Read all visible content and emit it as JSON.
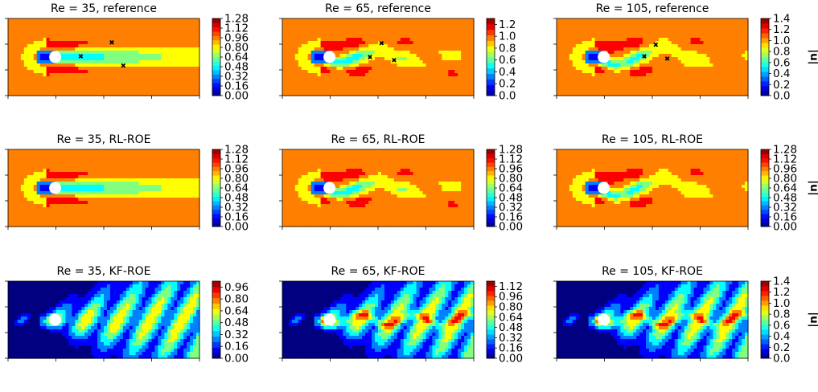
{
  "colorbar_label": "|u|",
  "chart_data": [
    {
      "type": "heatmap",
      "title": "Re = 35, reference",
      "colormap": "jet",
      "style": "reference",
      "re": 35,
      "colorbar": {
        "ticks": [
          "0.00",
          "0.16",
          "0.32",
          "0.48",
          "0.64",
          "0.80",
          "0.96",
          "1.12",
          "1.28"
        ],
        "range": [
          0,
          1.28
        ]
      },
      "show_colorbar_label": false,
      "markers": [
        {
          "x": 0.3,
          "y": 0.51
        },
        {
          "x": 0.57,
          "y": 0.69
        },
        {
          "x": 0.67,
          "y": 0.39
        }
      ]
    },
    {
      "type": "heatmap",
      "title": "Re = 65, reference",
      "colormap": "jet",
      "style": "reference",
      "re": 65,
      "colorbar": {
        "ticks": [
          "0.0",
          "0.2",
          "0.4",
          "0.6",
          "0.8",
          "1.0",
          "1.2"
        ],
        "range": [
          0,
          1.3
        ]
      },
      "show_colorbar_label": false,
      "markers": [
        {
          "x": 0.43,
          "y": 0.5
        },
        {
          "x": 0.53,
          "y": 0.68
        },
        {
          "x": 0.64,
          "y": 0.46
        }
      ]
    },
    {
      "type": "heatmap",
      "title": "Re = 105, reference",
      "colormap": "jet",
      "style": "reference",
      "re": 105,
      "colorbar": {
        "ticks": [
          "0.0",
          "0.2",
          "0.4",
          "0.6",
          "0.8",
          "1.0",
          "1.2",
          "1.4"
        ],
        "range": [
          0,
          1.4
        ]
      },
      "show_colorbar_label": true,
      "markers": [
        {
          "x": 0.43,
          "y": 0.51
        },
        {
          "x": 0.53,
          "y": 0.66
        },
        {
          "x": 0.63,
          "y": 0.48
        }
      ]
    },
    {
      "type": "heatmap",
      "title": "Re = 35, RL-ROE",
      "colormap": "jet",
      "style": "rl",
      "re": 35,
      "colorbar": {
        "ticks": [
          "0.00",
          "0.16",
          "0.32",
          "0.48",
          "0.64",
          "0.80",
          "0.96",
          "1.12",
          "1.28"
        ],
        "range": [
          0,
          1.28
        ]
      },
      "show_colorbar_label": false,
      "markers": []
    },
    {
      "type": "heatmap",
      "title": "Re = 65, RL-ROE",
      "colormap": "jet",
      "style": "rl",
      "re": 65,
      "colorbar": {
        "ticks": [
          "0.00",
          "0.16",
          "0.32",
          "0.48",
          "0.64",
          "0.80",
          "0.96",
          "1.12",
          "1.28"
        ],
        "range": [
          0,
          1.28
        ]
      },
      "show_colorbar_label": false,
      "markers": []
    },
    {
      "type": "heatmap",
      "title": "Re = 105, RL-ROE",
      "colormap": "jet",
      "style": "rl",
      "re": 105,
      "colorbar": {
        "ticks": [
          "0.00",
          "0.16",
          "0.32",
          "0.48",
          "0.64",
          "0.80",
          "0.96",
          "1.12",
          "1.28"
        ],
        "range": [
          0,
          1.28
        ]
      },
      "show_colorbar_label": true,
      "markers": []
    },
    {
      "type": "heatmap",
      "title": "Re = 35, KF-ROE",
      "colormap": "jet",
      "style": "kf",
      "re": 35,
      "colorbar": {
        "ticks": [
          "0.00",
          "0.16",
          "0.32",
          "0.48",
          "0.64",
          "0.80",
          "0.96"
        ],
        "range": [
          0,
          1.04
        ]
      },
      "show_colorbar_label": false,
      "markers": []
    },
    {
      "type": "heatmap",
      "title": "Re = 65, KF-ROE",
      "colormap": "jet",
      "style": "kf",
      "re": 65,
      "colorbar": {
        "ticks": [
          "0.00",
          "0.16",
          "0.32",
          "0.48",
          "0.64",
          "0.80",
          "0.96",
          "1.12"
        ],
        "range": [
          0,
          1.2
        ]
      },
      "show_colorbar_label": false,
      "markers": []
    },
    {
      "type": "heatmap",
      "title": "Re = 105, KF-ROE",
      "colormap": "jet",
      "style": "kf",
      "re": 105,
      "colorbar": {
        "ticks": [
          "0.0",
          "0.2",
          "0.4",
          "0.6",
          "0.8",
          "1.0",
          "1.2",
          "1.4"
        ],
        "range": [
          0,
          1.4
        ]
      },
      "show_colorbar_label": true,
      "markers": []
    }
  ]
}
